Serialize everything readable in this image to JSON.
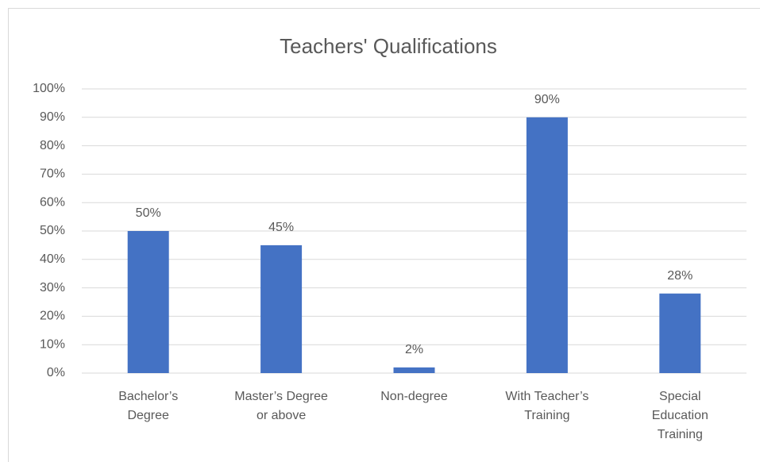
{
  "chart_data": {
    "type": "bar",
    "title": "Teachers' Qualifications",
    "categories": [
      "Bachelor’s Degree",
      "Master’s Degree or above",
      "Non-degree",
      "With Teacher’s Training",
      "Special Education Training"
    ],
    "values": [
      50,
      45,
      2,
      90,
      28
    ],
    "value_labels": [
      "50%",
      "45%",
      "2%",
      "90%",
      "28%"
    ],
    "color": "#4472c4",
    "ylim": [
      0,
      100
    ],
    "yticks": [
      {
        "value": 0,
        "label": "0%"
      },
      {
        "value": 10,
        "label": "10%"
      },
      {
        "value": 20,
        "label": "20%"
      },
      {
        "value": 30,
        "label": "30%"
      },
      {
        "value": 40,
        "label": "40%"
      },
      {
        "value": 50,
        "label": "50%"
      },
      {
        "value": 60,
        "label": "60%"
      },
      {
        "value": 70,
        "label": "70%"
      },
      {
        "value": 80,
        "label": "80%"
      },
      {
        "value": 90,
        "label": "90%"
      },
      {
        "value": 100,
        "label": "100%"
      }
    ],
    "grid": true
  }
}
